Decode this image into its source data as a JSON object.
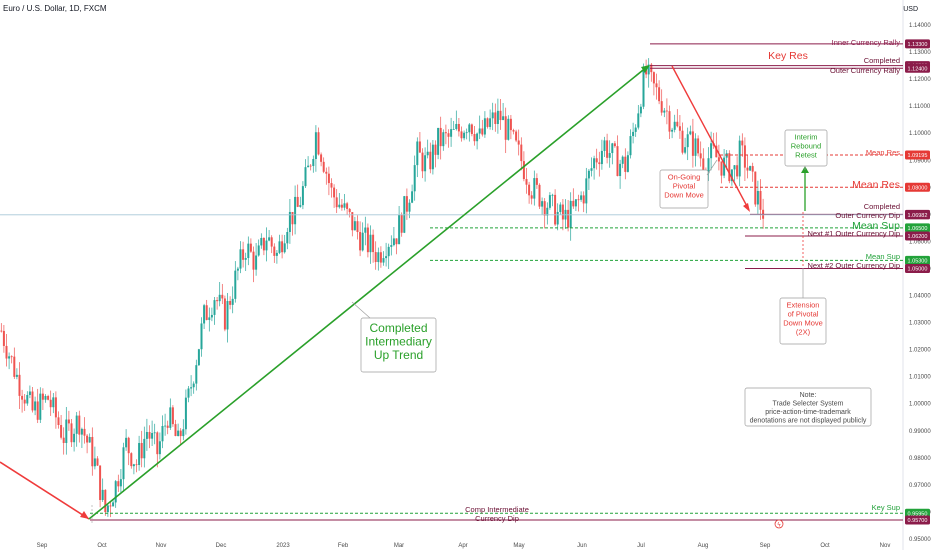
{
  "header": {
    "title": "Euro / U.S. Dollar, 1D, FXCM",
    "currency": "USD"
  },
  "colors": {
    "up": "#26a69a",
    "down": "#ef5350",
    "green_trend": "#2aa02a",
    "red_trend": "#ef3b3b",
    "maroon": "#8b1c4a",
    "green_level": "#22a23a",
    "red_level": "#e53935"
  },
  "chart_data": {
    "type": "candlestick",
    "title": "Euro / U.S. Dollar, 1D, FXCM",
    "x_ticks": [
      "Sep",
      "Oct",
      "Nov",
      "Dec",
      "2023",
      "Feb",
      "Mar",
      "Apr",
      "May",
      "Jun",
      "Jul",
      "Aug",
      "Sep",
      "Oct",
      "Nov"
    ],
    "y_ticks": [
      "1.14000",
      "1.13000",
      "1.12000",
      "1.11000",
      "1.10000",
      "1.09000",
      "1.08000",
      "1.07000",
      "1.06000",
      "1.05000",
      "1.04000",
      "1.03000",
      "1.02000",
      "1.01000",
      "1.00000",
      "0.99000",
      "0.98000",
      "0.97000",
      "0.96000",
      "0.95000"
    ],
    "ylim": [
      0.9495,
      1.1445
    ],
    "price_path": [
      [
        0,
        1.027
      ],
      [
        6,
        1.01
      ],
      [
        12,
        0.997
      ],
      [
        18,
        1.002
      ],
      [
        24,
        0.988
      ],
      [
        30,
        0.994
      ],
      [
        36,
        0.978
      ],
      [
        40,
        0.96
      ],
      [
        44,
        0.97
      ],
      [
        48,
        0.985
      ],
      [
        52,
        0.978
      ],
      [
        56,
        0.99
      ],
      [
        60,
        0.982
      ],
      [
        64,
        0.996
      ],
      [
        68,
        0.985
      ],
      [
        72,
        1.002
      ],
      [
        78,
        1.032
      ],
      [
        82,
        1.04
      ],
      [
        86,
        1.032
      ],
      [
        90,
        1.046
      ],
      [
        94,
        1.058
      ],
      [
        98,
        1.052
      ],
      [
        102,
        1.062
      ],
      [
        106,
        1.055
      ],
      [
        110,
        1.068
      ],
      [
        114,
        1.072
      ],
      [
        118,
        1.086
      ],
      [
        121,
        1.1
      ],
      [
        124,
        1.09
      ],
      [
        127,
        1.078
      ],
      [
        130,
        1.074
      ],
      [
        134,
        1.068
      ],
      [
        138,
        1.062
      ],
      [
        142,
        1.058
      ],
      [
        145,
        1.055
      ],
      [
        148,
        1.06
      ],
      [
        152,
        1.063
      ],
      [
        156,
        1.074
      ],
      [
        160,
        1.092
      ],
      [
        164,
        1.088
      ],
      [
        168,
        1.097
      ],
      [
        172,
        1.098
      ],
      [
        176,
        1.101
      ],
      [
        180,
        1.105
      ],
      [
        184,
        1.098
      ],
      [
        188,
        1.104
      ],
      [
        192,
        1.106
      ],
      [
        196,
        1.098
      ],
      [
        200,
        1.09
      ],
      [
        204,
        1.08
      ],
      [
        208,
        1.076
      ],
      [
        212,
        1.072
      ],
      [
        216,
        1.068
      ],
      [
        220,
        1.071
      ],
      [
        224,
        1.078
      ],
      [
        228,
        1.09
      ],
      [
        232,
        1.096
      ],
      [
        236,
        1.09
      ],
      [
        240,
        1.088
      ],
      [
        243,
        1.1
      ],
      [
        246,
        1.115
      ],
      [
        248,
        1.122
      ],
      [
        250,
        1.118
      ],
      [
        254,
        1.112
      ],
      [
        258,
        1.104
      ],
      [
        262,
        1.098
      ],
      [
        266,
        1.096
      ],
      [
        270,
        1.09
      ],
      [
        274,
        1.092
      ],
      [
        278,
        1.088
      ],
      [
        282,
        1.086
      ],
      [
        284,
        1.092
      ],
      [
        286,
        1.09
      ],
      [
        288,
        1.084
      ],
      [
        290,
        1.078
      ],
      [
        293,
        1.071
      ]
    ],
    "levels": [
      {
        "name": "Inner Currency Rally",
        "value": 1.133,
        "pill": "1.13300",
        "kind": "maroon",
        "style": "solid"
      },
      {
        "name": "Completed",
        "value": 1.125,
        "pill": "1.12500",
        "kind": "maroon",
        "style": "solid"
      },
      {
        "name": "Outer Currency Rally",
        "value": 1.124,
        "pill": "1.12400",
        "kind": "maroon",
        "style": "solid"
      },
      {
        "name": "Mean Res",
        "value": 1.09195,
        "pill": "1.09195",
        "kind": "red",
        "style": "dashed"
      },
      {
        "name": "Mean Res",
        "value": 1.08,
        "pill": "1.08000",
        "kind": "red",
        "style": "dashed"
      },
      {
        "name": "Completed",
        "value": 1.07,
        "pill": "1.07000",
        "kind": "maroon",
        "style": "solid"
      },
      {
        "name": "Outer Currency Dip",
        "value": 1.06982,
        "pill": "1.06982",
        "kind": "price",
        "style": "solid"
      },
      {
        "name": "Mean Sup",
        "value": 1.065,
        "pill": "1.06500",
        "kind": "green",
        "style": "dashed"
      },
      {
        "name": "Next #1 Outer Currency Dip",
        "value": 1.062,
        "pill": "1.06200",
        "kind": "maroon",
        "style": "solid"
      },
      {
        "name": "Mean Sup",
        "value": 1.053,
        "pill": "1.05300",
        "kind": "green",
        "style": "dashed"
      },
      {
        "name": "Next #2 Outer Currency Dip",
        "value": 1.05,
        "pill": "1.05000",
        "kind": "maroon",
        "style": "solid"
      },
      {
        "name": "Key Sup",
        "value": 0.9595,
        "pill": "0.95950",
        "kind": "green",
        "style": "dashed"
      },
      {
        "name": "Comp Intermediate Currency Dip",
        "value": 0.957,
        "pill": "0.95700",
        "kind": "maroon",
        "style": "solid"
      }
    ],
    "annotations": {
      "key_res": "Key Res",
      "interim": [
        "Interim",
        "Rebound",
        "Retest"
      ],
      "ongoing": [
        "On-Going",
        "Pivotal",
        "Down Move"
      ],
      "extension": [
        "Extension",
        "of Pivotal",
        "Down Move",
        "(2X)"
      ],
      "completed_trend": [
        "Completed",
        "Intermediary",
        "Up Trend"
      ],
      "note": [
        "Note:",
        "Trade Selecter System",
        "price-action-time-trademark",
        "denotations are not displayed publicly"
      ]
    }
  }
}
